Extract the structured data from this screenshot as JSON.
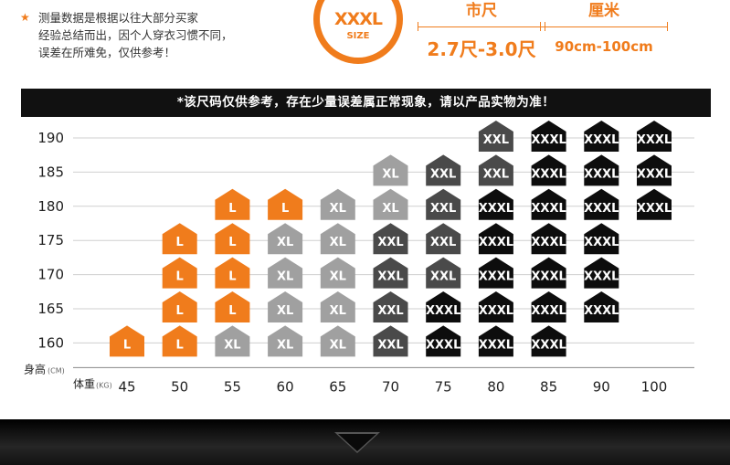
{
  "notice": {
    "lines": [
      "测量数据是根据以往大部分买家",
      "经验总结而出，因个人穿衣习惯不同，",
      "误差在所难免，仅供参考！"
    ]
  },
  "badge": {
    "size": "XXXL",
    "sub": "SIZE"
  },
  "measures": [
    {
      "head": "市尺",
      "value": "2.7尺-3.0尺"
    },
    {
      "head": "厘米",
      "value": "90cm-100cm"
    }
  ],
  "banner": "*该尺码仅供参考，存在少量误差属正常现象，请以产品实物为准！",
  "colors": {
    "L": "#f07c1c",
    "XL_light": "#a0a0a0",
    "XL_dark": "#555555",
    "XXL_dark": "#4a4a4a",
    "XXXL": "#0d0d0d",
    "grid": "#cfcfcf"
  },
  "chart_data": {
    "type": "table",
    "xlabel": "体重",
    "xunit": "(KG)",
    "ylabel": "身高",
    "yunit": "(CM)",
    "x": [
      45,
      50,
      55,
      60,
      65,
      70,
      75,
      80,
      85,
      90,
      100
    ],
    "y": [
      190,
      185,
      180,
      175,
      170,
      165,
      160
    ],
    "cells": [
      {
        "x": 45,
        "y": 160,
        "size": "L",
        "color": "L"
      },
      {
        "x": 50,
        "y": 175,
        "size": "L",
        "color": "L"
      },
      {
        "x": 50,
        "y": 170,
        "size": "L",
        "color": "L"
      },
      {
        "x": 50,
        "y": 165,
        "size": "L",
        "color": "L"
      },
      {
        "x": 50,
        "y": 160,
        "size": "L",
        "color": "L"
      },
      {
        "x": 55,
        "y": 180,
        "size": "L",
        "color": "L"
      },
      {
        "x": 55,
        "y": 175,
        "size": "L",
        "color": "L"
      },
      {
        "x": 55,
        "y": 170,
        "size": "L",
        "color": "L"
      },
      {
        "x": 55,
        "y": 165,
        "size": "L",
        "color": "L"
      },
      {
        "x": 55,
        "y": 160,
        "size": "XL",
        "color": "XL_light"
      },
      {
        "x": 60,
        "y": 180,
        "size": "L",
        "color": "L"
      },
      {
        "x": 60,
        "y": 175,
        "size": "XL",
        "color": "XL_light"
      },
      {
        "x": 60,
        "y": 170,
        "size": "XL",
        "color": "XL_light"
      },
      {
        "x": 60,
        "y": 165,
        "size": "XL",
        "color": "XL_light"
      },
      {
        "x": 60,
        "y": 160,
        "size": "XL",
        "color": "XL_light"
      },
      {
        "x": 65,
        "y": 180,
        "size": "XL",
        "color": "XL_light"
      },
      {
        "x": 65,
        "y": 175,
        "size": "XL",
        "color": "XL_light"
      },
      {
        "x": 65,
        "y": 170,
        "size": "XL",
        "color": "XL_light"
      },
      {
        "x": 65,
        "y": 165,
        "size": "XL",
        "color": "XL_light"
      },
      {
        "x": 65,
        "y": 160,
        "size": "XL",
        "color": "XL_light"
      },
      {
        "x": 70,
        "y": 185,
        "size": "XL",
        "color": "XL_light"
      },
      {
        "x": 70,
        "y": 180,
        "size": "XL",
        "color": "XL_light"
      },
      {
        "x": 70,
        "y": 175,
        "size": "XXL",
        "color": "XXL_dark"
      },
      {
        "x": 70,
        "y": 170,
        "size": "XXL",
        "color": "XXL_dark"
      },
      {
        "x": 70,
        "y": 165,
        "size": "XXL",
        "color": "XXL_dark"
      },
      {
        "x": 70,
        "y": 160,
        "size": "XXL",
        "color": "XXL_dark"
      },
      {
        "x": 75,
        "y": 185,
        "size": "XXL",
        "color": "XXL_dark"
      },
      {
        "x": 75,
        "y": 180,
        "size": "XXL",
        "color": "XXL_dark"
      },
      {
        "x": 75,
        "y": 175,
        "size": "XXL",
        "color": "XXL_dark"
      },
      {
        "x": 75,
        "y": 170,
        "size": "XXL",
        "color": "XXL_dark"
      },
      {
        "x": 75,
        "y": 165,
        "size": "XXXL",
        "color": "XXXL"
      },
      {
        "x": 75,
        "y": 160,
        "size": "XXXL",
        "color": "XXXL"
      },
      {
        "x": 80,
        "y": 190,
        "size": "XXL",
        "color": "XXL_dark"
      },
      {
        "x": 80,
        "y": 185,
        "size": "XXL",
        "color": "XXL_dark"
      },
      {
        "x": 80,
        "y": 180,
        "size": "XXXL",
        "color": "XXXL"
      },
      {
        "x": 80,
        "y": 175,
        "size": "XXXL",
        "color": "XXXL"
      },
      {
        "x": 80,
        "y": 170,
        "size": "XXXL",
        "color": "XXXL"
      },
      {
        "x": 80,
        "y": 165,
        "size": "XXXL",
        "color": "XXXL"
      },
      {
        "x": 80,
        "y": 160,
        "size": "XXXL",
        "color": "XXXL"
      },
      {
        "x": 85,
        "y": 190,
        "size": "XXXL",
        "color": "XXXL"
      },
      {
        "x": 85,
        "y": 185,
        "size": "XXXL",
        "color": "XXXL"
      },
      {
        "x": 85,
        "y": 180,
        "size": "XXXL",
        "color": "XXXL"
      },
      {
        "x": 85,
        "y": 175,
        "size": "XXXL",
        "color": "XXXL"
      },
      {
        "x": 85,
        "y": 170,
        "size": "XXXL",
        "color": "XXXL"
      },
      {
        "x": 85,
        "y": 165,
        "size": "XXXL",
        "color": "XXXL"
      },
      {
        "x": 85,
        "y": 160,
        "size": "XXXL",
        "color": "XXXL"
      },
      {
        "x": 90,
        "y": 190,
        "size": "XXXL",
        "color": "XXXL"
      },
      {
        "x": 90,
        "y": 185,
        "size": "XXXL",
        "color": "XXXL"
      },
      {
        "x": 90,
        "y": 180,
        "size": "XXXL",
        "color": "XXXL"
      },
      {
        "x": 90,
        "y": 175,
        "size": "XXXL",
        "color": "XXXL"
      },
      {
        "x": 90,
        "y": 170,
        "size": "XXXL",
        "color": "XXXL"
      },
      {
        "x": 90,
        "y": 165,
        "size": "XXXL",
        "color": "XXXL"
      },
      {
        "x": 100,
        "y": 190,
        "size": "XXXL",
        "color": "XXXL"
      },
      {
        "x": 100,
        "y": 185,
        "size": "XXXL",
        "color": "XXXL"
      },
      {
        "x": 100,
        "y": 180,
        "size": "XXXL",
        "color": "XXXL"
      }
    ]
  }
}
